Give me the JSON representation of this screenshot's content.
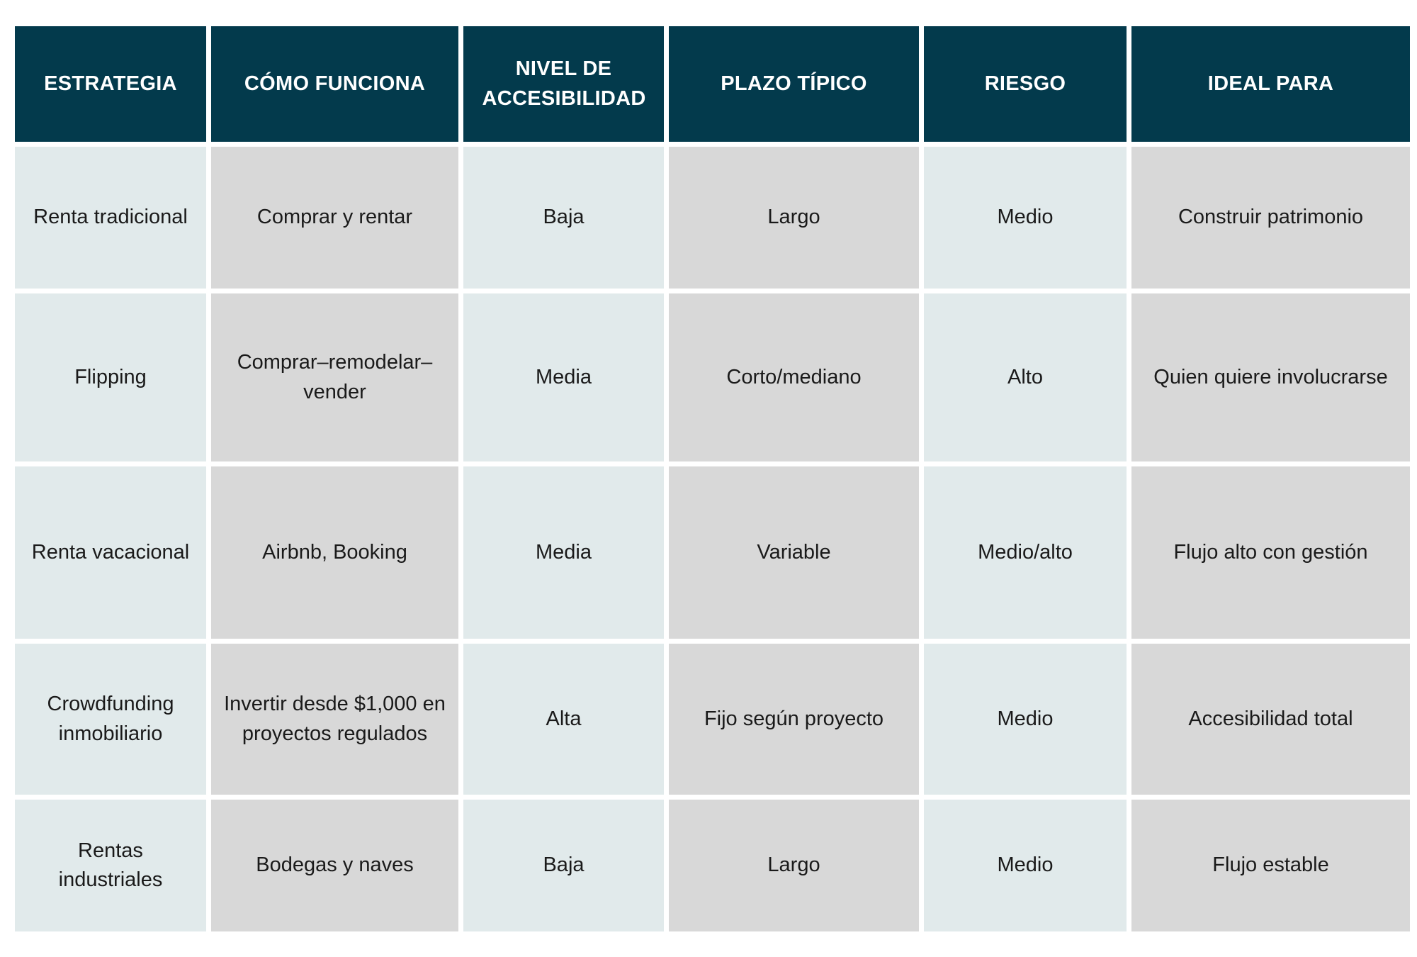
{
  "table": {
    "headers": [
      "ESTRATEGIA",
      "CÓMO FUNCIONA",
      "NIVEL DE ACCESIBILIDAD",
      "PLAZO TÍPICO",
      "RIESGO",
      "IDEAL PARA"
    ],
    "rows": [
      [
        "Renta tradicional",
        "Comprar y rentar",
        "Baja",
        "Largo",
        "Medio",
        "Construir patrimonio"
      ],
      [
        "Flipping",
        "Comprar–remodelar–vender",
        "Media",
        "Corto/mediano",
        "Alto",
        "Quien quiere involucrarse"
      ],
      [
        "Renta vacacional",
        "Airbnb, Booking",
        "Media",
        "Variable",
        "Medio/alto",
        "Flujo alto con gestión"
      ],
      [
        "Crowdfunding inmobiliario",
        "Invertir desde $1,000 en proyectos regulados",
        "Alta",
        "Fijo según proyecto",
        "Medio",
        "Accesibilidad total"
      ],
      [
        "Rentas industriales",
        "Bodegas y naves",
        "Baja",
        "Largo",
        "Medio",
        "Flujo estable"
      ]
    ]
  },
  "colors": {
    "header_bg": "#033a4c",
    "header_text": "#ffffff",
    "cell_light": "#e1eaeb",
    "cell_gray": "#d8d8d8"
  }
}
